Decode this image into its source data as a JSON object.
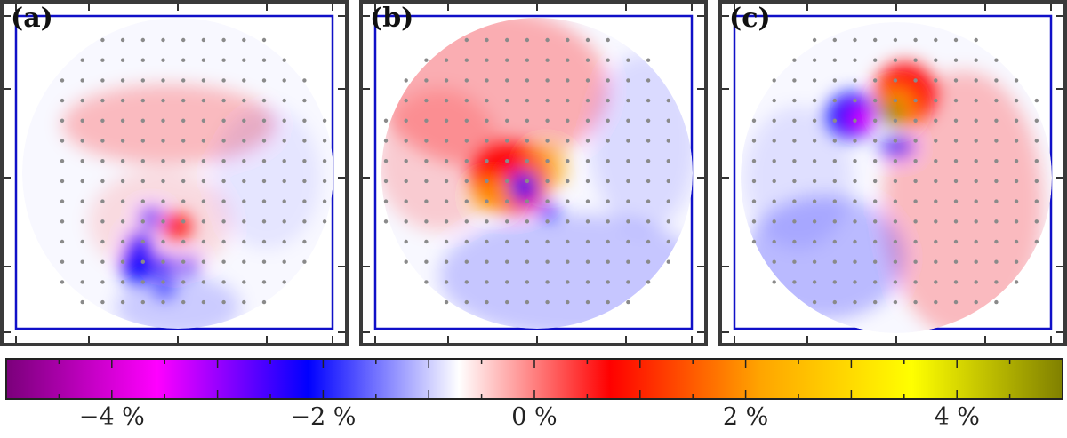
{
  "panels": [
    {
      "label": "(a)"
    },
    {
      "label": "(b)"
    },
    {
      "label": "(c)"
    }
  ],
  "colorbar": {
    "range": [
      -5,
      5
    ],
    "tick_labels": [
      {
        "value": -4,
        "text": "−4 %"
      },
      {
        "value": -2,
        "text": "−2 %"
      },
      {
        "value": 0,
        "text": "0 %"
      },
      {
        "value": 2,
        "text": "2 %"
      },
      {
        "value": 4,
        "text": "4 %"
      }
    ],
    "colors": [
      "#7a007a",
      "#ff00ff",
      "#0000ff",
      "#ffffff",
      "#ff0000",
      "#ffa500",
      "#ffff00",
      "#808000"
    ]
  },
  "chart_data": {
    "type": "heatmap",
    "title": "",
    "xlabel": "",
    "ylabel": "",
    "colorbar_range": [
      -5,
      5
    ],
    "colorbar_ticks": [
      -4,
      -2,
      0,
      2,
      4
    ],
    "colorbar_unit": "%",
    "panels": [
      "(a)",
      "(b)",
      "(c)"
    ]
  }
}
